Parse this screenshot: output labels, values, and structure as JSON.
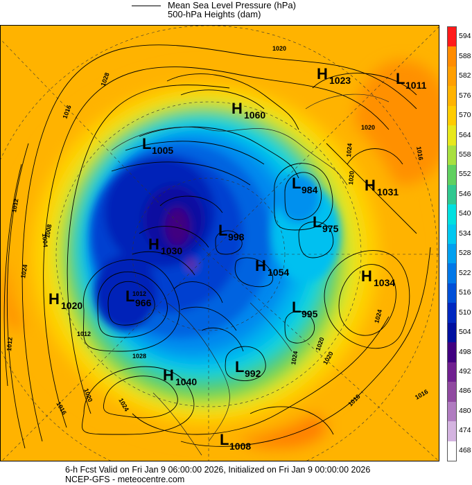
{
  "legend": {
    "mslp_label": "Mean Sea Level Pressure (hPa)",
    "heights_label": "500-hPa Heights (dam)"
  },
  "colorbar": {
    "levels": [
      "594",
      "588",
      "582",
      "576",
      "570",
      "564",
      "558",
      "552",
      "546",
      "540",
      "534",
      "528",
      "522",
      "516",
      "510",
      "504",
      "498",
      "492",
      "486",
      "480",
      "474",
      "468"
    ],
    "colors": [
      "#ff1a1a",
      "#ff8c00",
      "#ff9f00",
      "#ffb300",
      "#ffcc00",
      "#e8e81c",
      "#a8e040",
      "#60d060",
      "#30c890",
      "#00e0e0",
      "#00c8f0",
      "#00a0f0",
      "#0078e8",
      "#0050d8",
      "#0028c0",
      "#0010a0",
      "#400080",
      "#702090",
      "#904aa0",
      "#b07cc0",
      "#d4b4e0",
      "#ffffff"
    ]
  },
  "centers": [
    {
      "type": "H",
      "value": "1023"
    },
    {
      "type": "L",
      "value": "1011"
    },
    {
      "type": "H",
      "value": "1060"
    },
    {
      "type": "L",
      "value": "1005"
    },
    {
      "type": "L",
      "value": "984"
    },
    {
      "type": "H",
      "value": "1031"
    },
    {
      "type": "L",
      "value": "975"
    },
    {
      "type": "L",
      "value": "998"
    },
    {
      "type": "H",
      "value": "1030"
    },
    {
      "type": "H",
      "value": "1054"
    },
    {
      "type": "H",
      "value": "1034"
    },
    {
      "type": "H",
      "value": "1020"
    },
    {
      "type": "L",
      "value": "966"
    },
    {
      "type": "L",
      "value": "995"
    },
    {
      "type": "L",
      "value": "992"
    },
    {
      "type": "H",
      "value": "1040"
    },
    {
      "type": "L",
      "value": "1008"
    }
  ],
  "isobar_labels": [
    "1020",
    "1028",
    "1016",
    "1012",
    "1008",
    "1004",
    "1012",
    "1024",
    "1020",
    "1016",
    "1024",
    "1020",
    "1028",
    "1024",
    "1020",
    "1016",
    "1024",
    "1012",
    "1020",
    "1016",
    "1020",
    "1016",
    "1024",
    "1012"
  ],
  "footer": {
    "line1": "6-h Fcst Valid on Fri Jan  9 06:00:00 2026, Initialized on Fri Jan  9 00:00:00 2026",
    "line2": "NCEP-GFS - meteocentre.com"
  }
}
